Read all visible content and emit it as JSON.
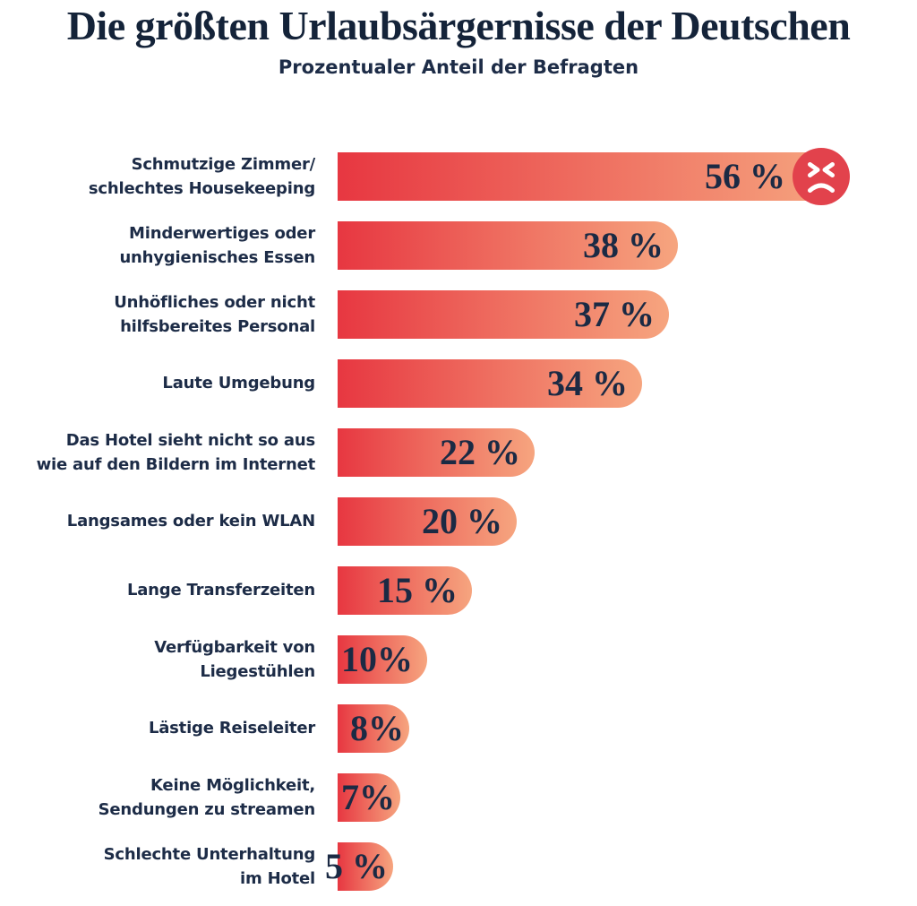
{
  "header": {
    "title": "Die größten Urlaubsärgernisse der Deutschen",
    "subtitle": "Prozentualer Anteil der Befragten"
  },
  "colors": {
    "text_dark_navy": "#142339",
    "label_navy": "#1d2c47",
    "value_navy": "#1b2a44",
    "bar_gradient_start": "#e73741",
    "bar_gradient_end": "#f6a57f",
    "angry_face_red": "#e2424c",
    "angry_face_features": "#ffffff",
    "background": "#ffffff"
  },
  "chart_data": {
    "type": "bar",
    "orientation": "horizontal",
    "title": "Die größten Urlaubsärgernisse der Deutschen",
    "subtitle": "Prozentualer Anteil der Befragten",
    "unit": "%",
    "xlim": [
      0,
      56
    ],
    "grid": false,
    "legend": null,
    "categories": [
      "Schmutzige Zimmer/ schlechtes Housekeeping",
      "Minderwertiges oder unhygienisches Essen",
      "Unhöfliches oder nicht hilfsbereites Personal",
      "Laute Umgebung",
      "Das Hotel sieht nicht so aus wie auf den Bildern im Internet",
      "Langsames oder kein WLAN",
      "Lange Transferzeiten",
      "Verfügbarkeit von Liegestühlen",
      "Lästige Reiseleiter",
      "Keine Möglichkeit, Sendungen zu streamen",
      "Schlechte Unterhaltung im Hotel"
    ],
    "values": [
      56,
      38,
      37,
      34,
      22,
      20,
      15,
      10,
      8,
      7,
      5
    ],
    "items": [
      {
        "label": "Schmutzige Zimmer/\nschlechtes Housekeeping",
        "value": 56,
        "display": "56 %",
        "emoji": "angry-face"
      },
      {
        "label": "Minderwertiges oder\nunhygienisches Essen",
        "value": 38,
        "display": "38 %"
      },
      {
        "label": "Unhöfliches oder nicht\nhilfsbereites Personal",
        "value": 37,
        "display": "37 %"
      },
      {
        "label": "Laute Umgebung",
        "value": 34,
        "display": "34 %"
      },
      {
        "label": "Das Hotel sieht nicht so aus\nwie auf den Bildern im Internet",
        "value": 22,
        "display": "22 %"
      },
      {
        "label": "Langsames oder kein WLAN",
        "value": 20,
        "display": "20 %"
      },
      {
        "label": "Lange Transferzeiten",
        "value": 15,
        "display": "15 %"
      },
      {
        "label": "Verfügbarkeit von\nLiegestühlen",
        "value": 10,
        "display": "10%"
      },
      {
        "label": "Lästige Reiseleiter",
        "value": 8,
        "display": "8%"
      },
      {
        "label": "Keine Möglichkeit,\nSendungen zu streamen",
        "value": 7,
        "display": "7%"
      },
      {
        "label": "Schlechte Unterhaltung\nim Hotel",
        "value": 5,
        "display": "5 %"
      }
    ]
  }
}
